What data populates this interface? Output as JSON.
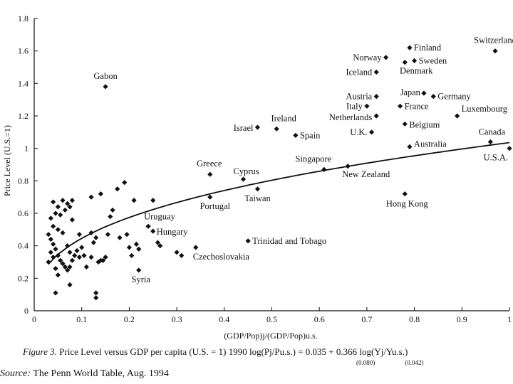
{
  "chart_data": {
    "type": "scatter",
    "xlabel": "(GDP/Pop)j/(GDP/Pop)u.s.",
    "ylabel": "Price Level (U.S.=1)",
    "xlim": [
      0,
      1
    ],
    "ylim": [
      0,
      1.8
    ],
    "xticks": [
      0,
      0.1,
      0.2,
      0.3,
      0.4,
      0.5,
      0.6,
      0.7,
      0.8,
      0.9,
      1
    ],
    "xtick_labels": [
      "0",
      "0.1",
      "0.2",
      "0.3",
      "0.4",
      "0.5",
      "0.6",
      "0.7",
      "0.8",
      "0.9",
      "1"
    ],
    "yticks": [
      0,
      0.2,
      0.4,
      0.6,
      0.8,
      1,
      1.2,
      1.4,
      1.6,
      1.8
    ],
    "ytick_labels": [
      "0",
      "0.2",
      "0.4",
      "0.6",
      "0.8",
      "1",
      "1.2",
      "1.4",
      "1.6",
      "1.8"
    ],
    "grid": false,
    "marker": "diamond",
    "fit_curve": {
      "form": "log(y) = a + b*log(x)",
      "a": 0.035,
      "b": 0.366,
      "x_range": [
        0.03,
        1.0
      ]
    },
    "labeled_points": [
      {
        "label": "Switzerland",
        "x": 0.97,
        "y": 1.6
      },
      {
        "label": "Finland",
        "x": 0.79,
        "y": 1.62
      },
      {
        "label": "Norway",
        "x": 0.74,
        "y": 1.56
      },
      {
        "label": "Sweden",
        "x": 0.8,
        "y": 1.54
      },
      {
        "label": "Iceland",
        "x": 0.72,
        "y": 1.47
      },
      {
        "label": "Denmark",
        "x": 0.78,
        "y": 1.53
      },
      {
        "label": "Gabon",
        "x": 0.15,
        "y": 1.38
      },
      {
        "label": "Japan",
        "x": 0.82,
        "y": 1.34
      },
      {
        "label": "Austria",
        "x": 0.72,
        "y": 1.32
      },
      {
        "label": "Germany",
        "x": 0.84,
        "y": 1.32
      },
      {
        "label": "Italy",
        "x": 0.7,
        "y": 1.26
      },
      {
        "label": "France",
        "x": 0.77,
        "y": 1.26
      },
      {
        "label": "Luxembourg",
        "x": 0.89,
        "y": 1.2
      },
      {
        "label": "Netherlands",
        "x": 0.72,
        "y": 1.2
      },
      {
        "label": "Ireland",
        "x": 0.51,
        "y": 1.12
      },
      {
        "label": "Israel",
        "x": 0.47,
        "y": 1.13
      },
      {
        "label": "Belgium",
        "x": 0.78,
        "y": 1.15
      },
      {
        "label": "Spain",
        "x": 0.55,
        "y": 1.08
      },
      {
        "label": "U.K.",
        "x": 0.71,
        "y": 1.1
      },
      {
        "label": "Canada",
        "x": 0.96,
        "y": 1.04
      },
      {
        "label": "Australia",
        "x": 0.79,
        "y": 1.01
      },
      {
        "label": "U.S.A.",
        "x": 1.0,
        "y": 1.0
      },
      {
        "label": "Singapore",
        "x": 0.61,
        "y": 0.87
      },
      {
        "label": "New Zealand",
        "x": 0.66,
        "y": 0.89
      },
      {
        "label": "Greece",
        "x": 0.37,
        "y": 0.84
      },
      {
        "label": "Cyprus",
        "x": 0.44,
        "y": 0.81
      },
      {
        "label": "Portugal",
        "x": 0.37,
        "y": 0.7
      },
      {
        "label": "Taiwan",
        "x": 0.47,
        "y": 0.75
      },
      {
        "label": "Hong Kong",
        "x": 0.78,
        "y": 0.72
      },
      {
        "label": "Uruguay",
        "x": 0.24,
        "y": 0.52
      },
      {
        "label": "Hungary",
        "x": 0.25,
        "y": 0.49
      },
      {
        "label": "Trinidad and Tobago",
        "x": 0.45,
        "y": 0.43
      },
      {
        "label": "Czechoslovakia",
        "x": 0.34,
        "y": 0.39
      },
      {
        "label": "Syria",
        "x": 0.22,
        "y": 0.25
      }
    ],
    "unlabeled_points": [
      {
        "x": 0.04,
        "y": 0.67
      },
      {
        "x": 0.06,
        "y": 0.68
      },
      {
        "x": 0.07,
        "y": 0.66
      },
      {
        "x": 0.08,
        "y": 0.68
      },
      {
        "x": 0.065,
        "y": 0.62
      },
      {
        "x": 0.075,
        "y": 0.64
      },
      {
        "x": 0.05,
        "y": 0.64
      },
      {
        "x": 0.035,
        "y": 0.57
      },
      {
        "x": 0.045,
        "y": 0.6
      },
      {
        "x": 0.055,
        "y": 0.59
      },
      {
        "x": 0.08,
        "y": 0.56
      },
      {
        "x": 0.03,
        "y": 0.47
      },
      {
        "x": 0.04,
        "y": 0.52
      },
      {
        "x": 0.05,
        "y": 0.5
      },
      {
        "x": 0.06,
        "y": 0.48
      },
      {
        "x": 0.035,
        "y": 0.44
      },
      {
        "x": 0.04,
        "y": 0.41
      },
      {
        "x": 0.045,
        "y": 0.38
      },
      {
        "x": 0.035,
        "y": 0.36
      },
      {
        "x": 0.05,
        "y": 0.34
      },
      {
        "x": 0.055,
        "y": 0.31
      },
      {
        "x": 0.06,
        "y": 0.29
      },
      {
        "x": 0.065,
        "y": 0.27
      },
      {
        "x": 0.045,
        "y": 0.26
      },
      {
        "x": 0.05,
        "y": 0.22
      },
      {
        "x": 0.07,
        "y": 0.25
      },
      {
        "x": 0.075,
        "y": 0.27
      },
      {
        "x": 0.08,
        "y": 0.31
      },
      {
        "x": 0.07,
        "y": 0.4
      },
      {
        "x": 0.075,
        "y": 0.36
      },
      {
        "x": 0.085,
        "y": 0.34
      },
      {
        "x": 0.09,
        "y": 0.37
      },
      {
        "x": 0.095,
        "y": 0.33
      },
      {
        "x": 0.1,
        "y": 0.39
      },
      {
        "x": 0.105,
        "y": 0.34
      },
      {
        "x": 0.11,
        "y": 0.27
      },
      {
        "x": 0.12,
        "y": 0.33
      },
      {
        "x": 0.125,
        "y": 0.42
      },
      {
        "x": 0.13,
        "y": 0.45
      },
      {
        "x": 0.12,
        "y": 0.48
      },
      {
        "x": 0.135,
        "y": 0.3
      },
      {
        "x": 0.14,
        "y": 0.31
      },
      {
        "x": 0.145,
        "y": 0.31
      },
      {
        "x": 0.15,
        "y": 0.33
      },
      {
        "x": 0.155,
        "y": 0.47
      },
      {
        "x": 0.16,
        "y": 0.58
      },
      {
        "x": 0.165,
        "y": 0.62
      },
      {
        "x": 0.175,
        "y": 0.75
      },
      {
        "x": 0.19,
        "y": 0.79
      },
      {
        "x": 0.18,
        "y": 0.45
      },
      {
        "x": 0.195,
        "y": 0.47
      },
      {
        "x": 0.2,
        "y": 0.39
      },
      {
        "x": 0.205,
        "y": 0.34
      },
      {
        "x": 0.215,
        "y": 0.41
      },
      {
        "x": 0.22,
        "y": 0.38
      },
      {
        "x": 0.21,
        "y": 0.68
      },
      {
        "x": 0.12,
        "y": 0.7
      },
      {
        "x": 0.14,
        "y": 0.72
      },
      {
        "x": 0.25,
        "y": 0.68
      },
      {
        "x": 0.26,
        "y": 0.42
      },
      {
        "x": 0.265,
        "y": 0.4
      },
      {
        "x": 0.3,
        "y": 0.36
      },
      {
        "x": 0.31,
        "y": 0.34
      },
      {
        "x": 0.13,
        "y": 0.11
      },
      {
        "x": 0.13,
        "y": 0.08
      },
      {
        "x": 0.045,
        "y": 0.11
      },
      {
        "x": 0.075,
        "y": 0.16
      },
      {
        "x": 0.03,
        "y": 0.3
      },
      {
        "x": 0.04,
        "y": 0.33
      },
      {
        "x": 0.095,
        "y": 0.47
      }
    ]
  },
  "caption": {
    "figure_label": "Figure 3.",
    "title_text": "Price Level versus GDP per capita (U.S. = 1) 1990",
    "equation_lhs": "log(Pj/Pu.s.) = 0.035 + 0.366 log(Yj/Yu.s.)",
    "se_a": "(0.080)",
    "se_b": "(0.042)"
  },
  "source": {
    "label": "Source:",
    "text": "The Penn World Table, Aug. 1994"
  }
}
